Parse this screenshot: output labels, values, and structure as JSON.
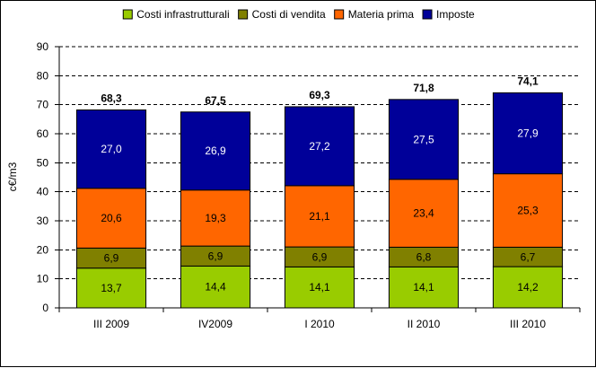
{
  "chart_data": {
    "type": "bar",
    "stacked": true,
    "title": "",
    "xlabel": "",
    "ylabel": "c€/m3",
    "ylim": [
      0,
      90
    ],
    "yticks": [
      0,
      10,
      20,
      30,
      40,
      50,
      60,
      70,
      80,
      90
    ],
    "grid": true,
    "legend_position": "top",
    "categories": [
      "III 2009",
      "IV2009",
      "I 2010",
      "II 2010",
      "III 2010"
    ],
    "series": [
      {
        "name": "Costi infrastrutturali",
        "color": "#99cc00",
        "label_color": "#000000",
        "values": [
          13.7,
          14.4,
          14.1,
          14.1,
          14.2
        ],
        "labels": [
          "13,7",
          "14,4",
          "14,1",
          "14,1",
          "14,2"
        ]
      },
      {
        "name": "Costi di vendita",
        "color": "#808000",
        "label_color": "#000000",
        "values": [
          6.9,
          6.9,
          6.9,
          6.8,
          6.7
        ],
        "labels": [
          "6,9",
          "6,9",
          "6,9",
          "6,8",
          "6,7"
        ]
      },
      {
        "name": "Materia prima",
        "color": "#ff6600",
        "label_color": "#000000",
        "values": [
          20.6,
          19.3,
          21.1,
          23.4,
          25.3
        ],
        "labels": [
          "20,6",
          "19,3",
          "21,1",
          "23,4",
          "25,3"
        ]
      },
      {
        "name": "Imposte",
        "color": "#000099",
        "label_color": "#ffffff",
        "values": [
          27.0,
          26.9,
          27.2,
          27.5,
          27.9
        ],
        "labels": [
          "27,0",
          "26,9",
          "27,2",
          "27,5",
          "27,9"
        ]
      }
    ],
    "totals": [
      68.3,
      67.5,
      69.3,
      71.8,
      74.1
    ],
    "total_labels": [
      "68,3",
      "67,5",
      "69,3",
      "71,8",
      "74,1"
    ]
  }
}
